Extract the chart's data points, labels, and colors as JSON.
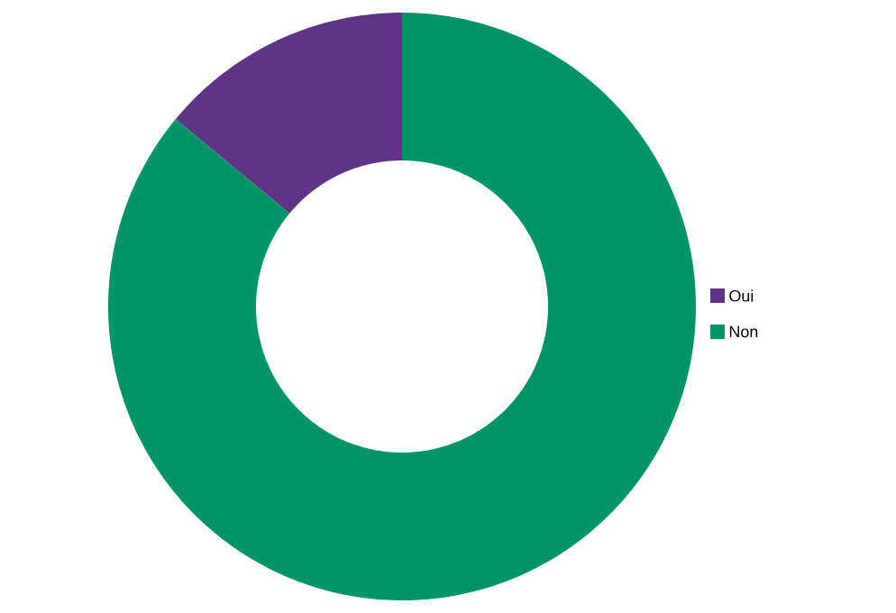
{
  "chart_data": {
    "type": "donut",
    "categories": [
      "Oui",
      "Non"
    ],
    "values": [
      14,
      86
    ],
    "colors": [
      "#5e3485",
      "#009469"
    ],
    "legend": "right"
  }
}
